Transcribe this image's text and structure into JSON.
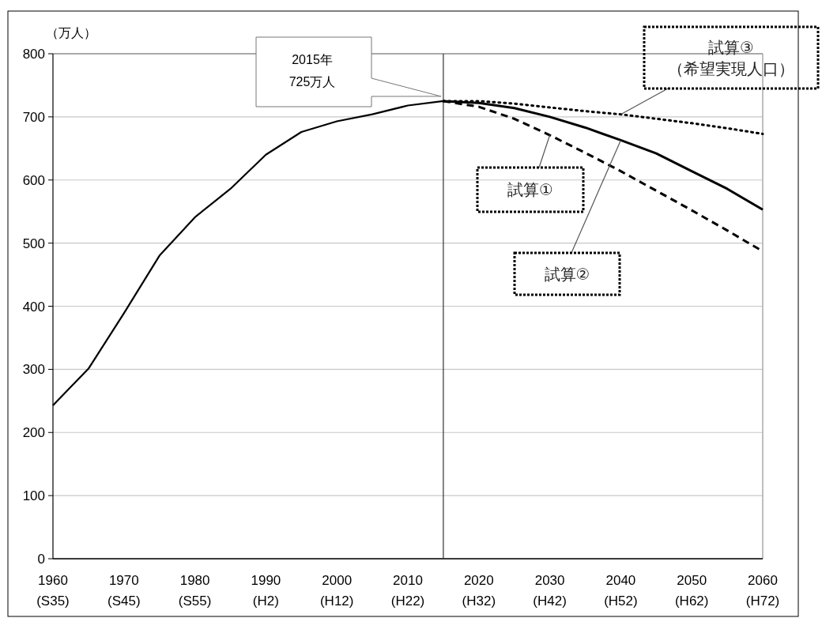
{
  "chart_data": {
    "type": "line",
    "ylabel": "（万人）",
    "xlim": [
      1960,
      2060
    ],
    "ylim": [
      0,
      800
    ],
    "xticks": [
      1960,
      1970,
      1980,
      1990,
      2000,
      2010,
      2020,
      2030,
      2040,
      2050,
      2060
    ],
    "yticks": [
      0,
      100,
      200,
      300,
      400,
      500,
      600,
      700,
      800
    ],
    "grid": "y",
    "series": [
      {
        "color": "#000000",
        "line_style": "solid",
        "x": [
          1960,
          1965,
          1970,
          1975,
          1980,
          1985,
          1990,
          1995,
          2000,
          2005,
          2010,
          2015
        ],
        "values": [
          243,
          301,
          389,
          480,
          541,
          586,
          640,
          676,
          693,
          704,
          718,
          725
        ]
      },
      {
        "name": "試算①",
        "color": "#000000",
        "line_style": "dashed",
        "x": [
          2015,
          2020,
          2025,
          2030,
          2035,
          2040,
          2045,
          2050,
          2055,
          2060
        ],
        "values": [
          725,
          716,
          697,
          671,
          643,
          614,
          583,
          552,
          520,
          487
        ]
      },
      {
        "name": "試算②",
        "color": "#000000",
        "line_style": "solid",
        "x": [
          2015,
          2020,
          2025,
          2030,
          2035,
          2040,
          2045,
          2050,
          2055,
          2060
        ],
        "values": [
          725,
          722,
          714,
          700,
          683,
          663,
          642,
          614,
          586,
          553
        ]
      },
      {
        "name": "試算③\n（希望実現人口）",
        "color": "#000000",
        "line_style": "dotted",
        "x": [
          2015,
          2020,
          2025,
          2030,
          2035,
          2040,
          2045,
          2050,
          2055,
          2060
        ],
        "values": [
          725,
          725,
          721,
          715,
          709,
          704,
          697,
          690,
          682,
          673
        ]
      }
    ],
    "ref_lines": [
      {
        "axis": "x",
        "value": 2015,
        "color": "#333333",
        "line_style": "solid"
      }
    ],
    "annotations": [
      "2015年\n725万人",
      "(S35)",
      "(S45)",
      "(S55)",
      "(H2)",
      "(H12)",
      "(H22)",
      "(H32)",
      "(H42)",
      "(H52)",
      "(H62)",
      "(H72)"
    ]
  }
}
